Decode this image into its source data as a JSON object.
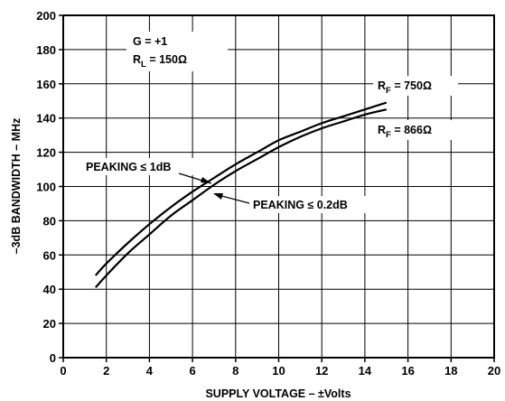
{
  "chart_data": {
    "type": "line",
    "title": "",
    "xlabel": "SUPPLY VOLTAGE – ±Volts",
    "ylabel": "–3dB BANDWIDTH – MHz",
    "xlim": [
      0,
      20
    ],
    "ylim": [
      0,
      200
    ],
    "xticks": [
      0,
      2,
      4,
      6,
      8,
      10,
      12,
      14,
      16,
      18,
      20
    ],
    "yticks": [
      0,
      20,
      40,
      60,
      80,
      100,
      120,
      140,
      160,
      180,
      200
    ],
    "grid": true,
    "series": [
      {
        "name": "RF = 750Ω",
        "x": [
          1.5,
          2,
          3,
          4,
          5,
          6,
          7,
          8,
          9,
          10,
          11,
          12,
          13,
          14,
          15
        ],
        "y": [
          48,
          55,
          67,
          78,
          88,
          97,
          105,
          113,
          120,
          127,
          132,
          137,
          141,
          145,
          149
        ]
      },
      {
        "name": "RF = 866Ω",
        "x": [
          1.5,
          2,
          3,
          4,
          5,
          6,
          7,
          8,
          9,
          10,
          11,
          12,
          13,
          14,
          15
        ],
        "y": [
          41,
          48,
          61,
          72,
          83,
          92,
          101,
          109,
          116,
          123,
          129,
          134,
          138,
          142,
          145
        ]
      }
    ],
    "annotations": {
      "gain": "G = +1",
      "rl_main": "R",
      "rl_sub": "L",
      "rl_value": " = 150Ω",
      "rf1_main": "R",
      "rf1_sub": "F",
      "rf1_value": " = 750Ω",
      "rf2_main": "R",
      "rf2_sub": "F",
      "rf2_value": " = 866Ω",
      "peaking1": "PEAKING ≤ 1dB",
      "peaking2": "PEAKING ≤ 0.2dB"
    }
  }
}
